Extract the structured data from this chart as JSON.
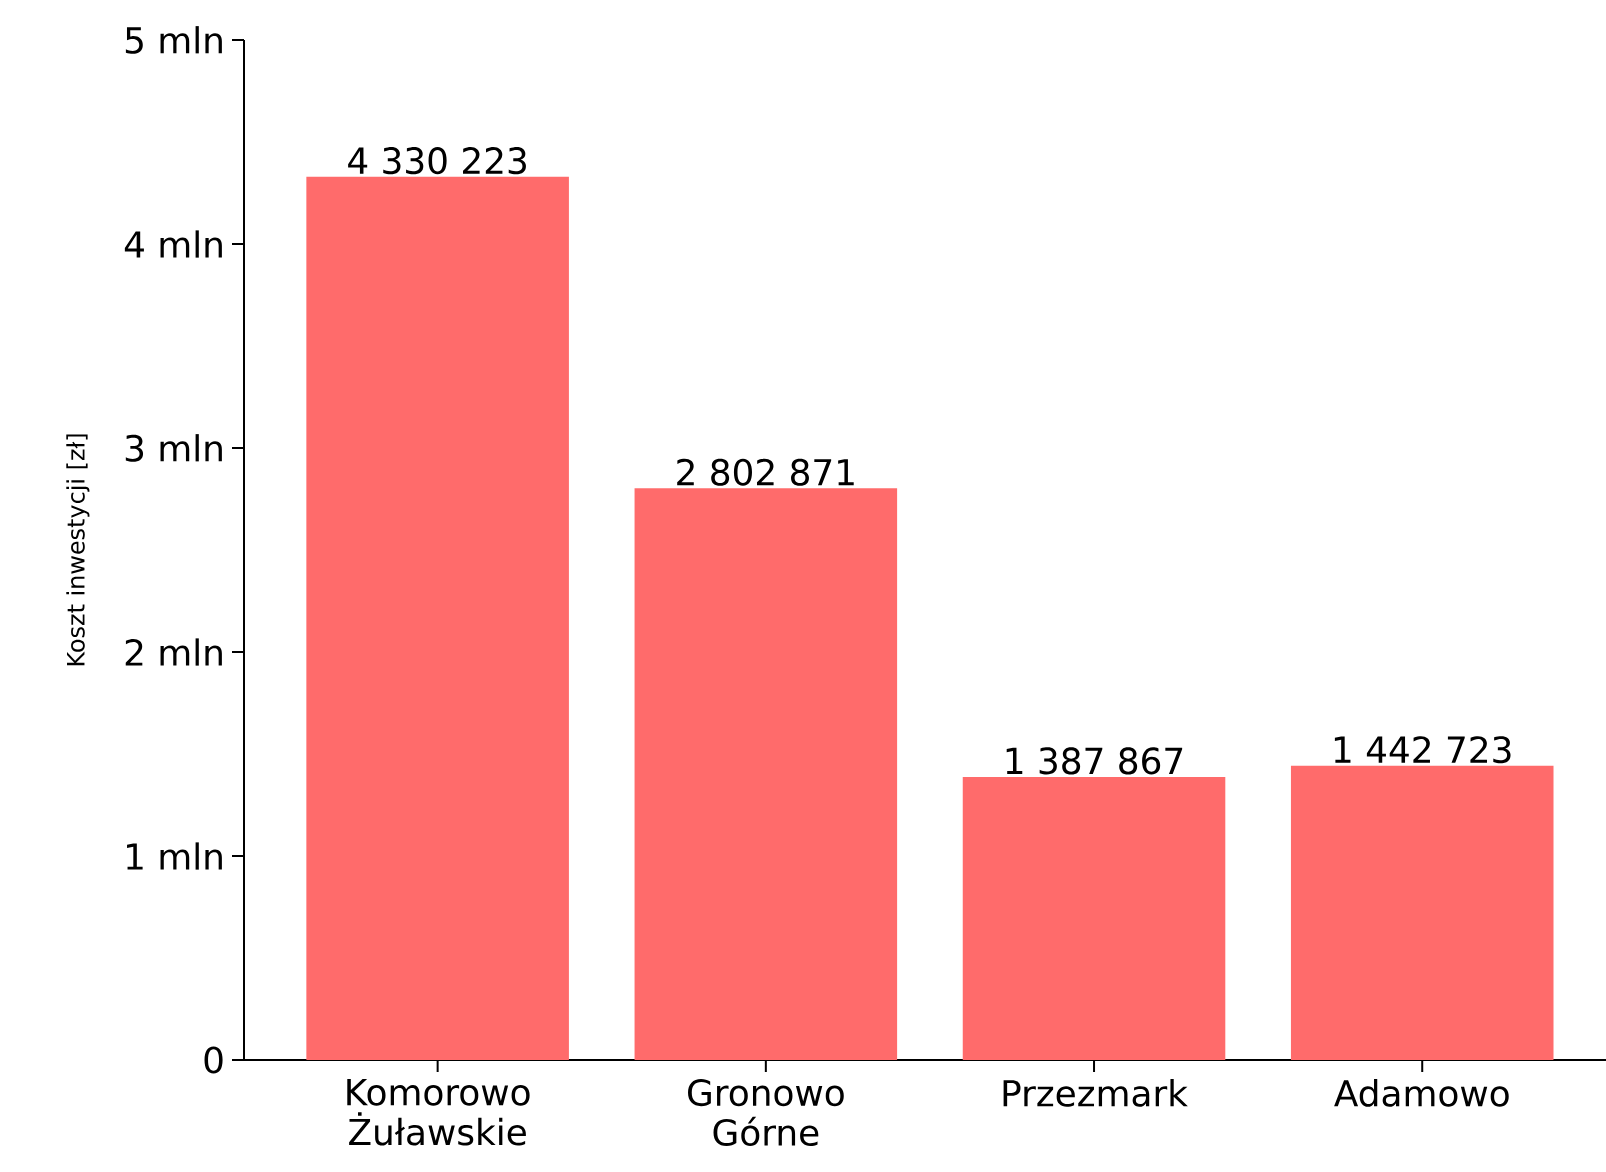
{
  "chart_data": {
    "type": "bar",
    "ylabel": "Koszt inwestycji [zł]",
    "categories": [
      "Komorowo Żuławskie",
      "Gronowo Górne",
      "Przezmark",
      "Adamowo"
    ],
    "values": [
      4.330223,
      2.802871,
      1.387867,
      1.442723
    ],
    "annotations": [
      {
        "text": "4 330 223",
        "x": "Komorowo Żuławskie",
        "y": 4.330223
      },
      {
        "text": "2 802 871",
        "x": "Gronowo Górne",
        "y": 2.802871
      },
      {
        "text": "1 387 867",
        "x": "Przezmark",
        "y": 1.387867
      },
      {
        "text": "1 442 723",
        "x": "Adamowo",
        "y": 1.442723
      }
    ],
    "color": "#ff6b6b",
    "ylim": [
      0,
      5
    ],
    "yticks": [
      0,
      {
        "value": 1,
        "label": "1 mln"
      },
      {
        "value": 2,
        "label": "2 mln"
      },
      {
        "value": 3,
        "label": "3 mln"
      },
      {
        "value": 4,
        "label": "4 mln"
      },
      {
        "value": 5,
        "label": "5 mln"
      }
    ]
  }
}
